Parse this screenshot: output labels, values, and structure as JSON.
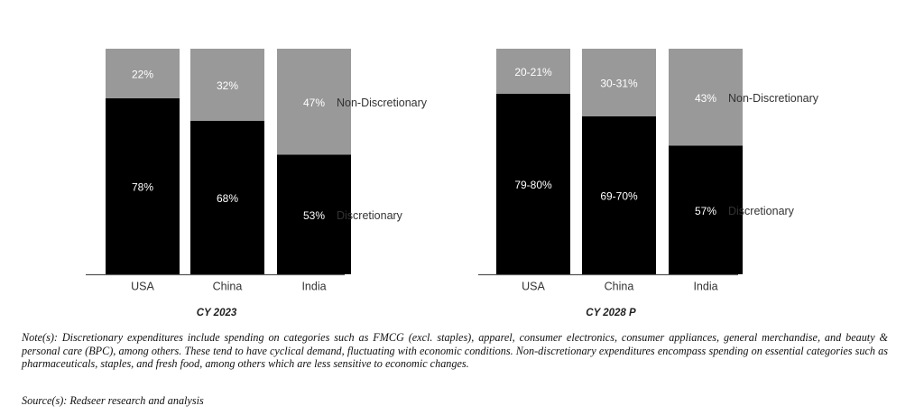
{
  "chart_data": [
    {
      "type": "bar",
      "stacked": true,
      "percent_stacked": true,
      "title": "CY 2023",
      "categories": [
        "USA",
        "China",
        "India"
      ],
      "series": [
        {
          "name": "Discretionary",
          "values": [
            78,
            68,
            53
          ],
          "labels": [
            "78%",
            "68%",
            "53%"
          ],
          "color": "#000000"
        },
        {
          "name": "Non-Discretionary",
          "values": [
            22,
            32,
            47
          ],
          "labels": [
            "22%",
            "32%",
            "47%"
          ],
          "color": "#999999"
        }
      ],
      "ylim": [
        0,
        100
      ]
    },
    {
      "type": "bar",
      "stacked": true,
      "percent_stacked": true,
      "title": "CY 2028 P",
      "categories": [
        "USA",
        "China",
        "India"
      ],
      "series": [
        {
          "name": "Discretionary",
          "values": [
            80,
            70,
            57
          ],
          "labels": [
            "79-80%",
            "69-70%",
            "57%"
          ],
          "color": "#000000"
        },
        {
          "name": "Non-Discretionary",
          "values": [
            20,
            30,
            43
          ],
          "labels": [
            "20-21%",
            "30-31%",
            "43%"
          ],
          "color": "#999999"
        }
      ],
      "ylim": [
        0,
        100
      ]
    }
  ],
  "note": "Note(s): Discretionary expenditures include spending on categories such as FMCG (excl. staples), apparel, consumer electronics, consumer appliances, general merchandise, and beauty & personal care (BPC), among others. These tend to have cyclical demand, fluctuating with economic conditions. Non-discretionary expenditures encompass spending on essential categories such as pharmaceuticals, staples, and fresh food, among others which are less sensitive to economic changes.",
  "source": "Source(s): Redseer research and analysis",
  "colors": {
    "discretionary": "#000000",
    "non_discretionary": "#999999",
    "axis": "#555555"
  }
}
